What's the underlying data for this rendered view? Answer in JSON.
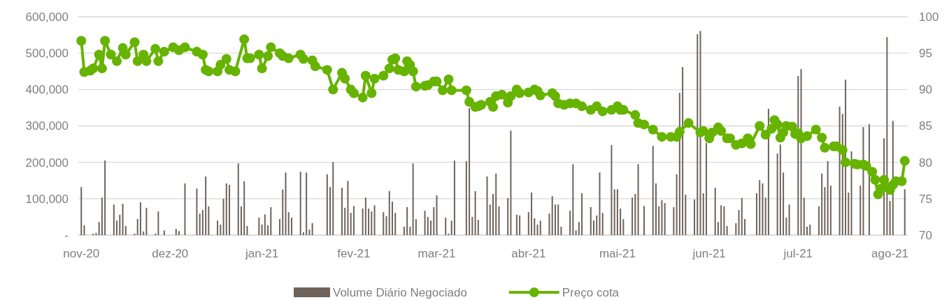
{
  "chart_data": {
    "type": "bar",
    "xlim": [
      "2020-10-31",
      "2021-08-07"
    ],
    "xticks": [
      {
        "value": "2020-11-01",
        "label": "nov-20"
      },
      {
        "value": "2020-12-01",
        "label": "dez-20"
      },
      {
        "value": "2021-01-01",
        "label": "jan-21"
      },
      {
        "value": "2021-02-01",
        "label": "fev-21"
      },
      {
        "value": "2021-03-01",
        "label": "mar-21"
      },
      {
        "value": "2021-04-01",
        "label": "abr-21"
      },
      {
        "value": "2021-05-01",
        "label": "mai-21"
      },
      {
        "value": "2021-06-01",
        "label": "jun-21"
      },
      {
        "value": "2021-07-01",
        "label": "jul-21"
      },
      {
        "value": "2021-08-01",
        "label": "ago-21"
      }
    ],
    "ylim": [
      0,
      600000
    ],
    "yticks": [
      {
        "value": 0,
        "label": "-"
      },
      {
        "value": 100000,
        "label": "100,000"
      },
      {
        "value": 200000,
        "label": "200,000"
      },
      {
        "value": 300000,
        "label": "300,000"
      },
      {
        "value": 400000,
        "label": "400,000"
      },
      {
        "value": 500000,
        "label": "500,000"
      },
      {
        "value": 600000,
        "label": "600,000"
      }
    ],
    "y2lim": [
      70,
      100
    ],
    "y2ticks": [
      70,
      75,
      80,
      85,
      90,
      95,
      100
    ],
    "grid": "y",
    "legend": "bottom",
    "series": [
      {
        "name": "Volume Diário Negociado",
        "color": "#6f635a",
        "x": [
          "2020-11-01",
          "2020-11-02",
          "2020-11-05",
          "2020-11-06",
          "2020-11-07",
          "2020-11-08",
          "2020-11-09",
          "2020-11-12",
          "2020-11-13",
          "2020-11-14",
          "2020-11-15",
          "2020-11-16",
          "2020-11-19",
          "2020-11-20",
          "2020-11-21",
          "2020-11-22",
          "2020-11-23",
          "2020-11-26",
          "2020-11-27",
          "2020-11-29",
          "2020-12-03",
          "2020-12-04",
          "2020-12-06",
          "2020-12-10",
          "2020-12-11",
          "2020-12-12",
          "2020-12-13",
          "2020-12-14",
          "2020-12-17",
          "2020-12-18",
          "2020-12-19",
          "2020-12-20",
          "2020-12-21",
          "2020-12-24",
          "2020-12-25",
          "2020-12-26",
          "2020-12-27",
          "2020-12-31",
          "2021-01-01",
          "2021-01-02",
          "2021-01-03",
          "2021-01-04",
          "2021-01-07",
          "2021-01-08",
          "2021-01-09",
          "2021-01-10",
          "2021-01-11",
          "2021-01-14",
          "2021-01-15",
          "2021-01-16",
          "2021-01-17",
          "2021-01-18",
          "2021-01-23",
          "2021-01-24",
          "2021-01-25",
          "2021-01-28",
          "2021-01-29",
          "2021-01-30",
          "2021-01-31",
          "2021-02-01",
          "2021-02-04",
          "2021-02-05",
          "2021-02-06",
          "2021-02-07",
          "2021-02-08",
          "2021-02-11",
          "2021-02-12",
          "2021-02-13",
          "2021-02-14",
          "2021-02-15",
          "2021-02-18",
          "2021-02-19",
          "2021-02-20",
          "2021-02-21",
          "2021-02-22",
          "2021-02-25",
          "2021-02-26",
          "2021-02-27",
          "2021-02-28",
          "2021-03-01",
          "2021-03-04",
          "2021-03-05",
          "2021-03-06",
          "2021-03-07",
          "2021-03-11",
          "2021-03-12",
          "2021-03-13",
          "2021-03-14",
          "2021-03-15",
          "2021-03-18",
          "2021-03-19",
          "2021-03-20",
          "2021-03-21",
          "2021-03-22",
          "2021-03-25",
          "2021-03-26",
          "2021-03-28",
          "2021-03-29",
          "2021-04-01",
          "2021-04-02",
          "2021-04-03",
          "2021-04-04",
          "2021-04-05",
          "2021-04-08",
          "2021-04-09",
          "2021-04-10",
          "2021-04-11",
          "2021-04-12",
          "2021-04-15",
          "2021-04-16",
          "2021-04-17",
          "2021-04-18",
          "2021-04-19",
          "2021-04-22",
          "2021-04-23",
          "2021-04-24",
          "2021-04-25",
          "2021-04-26",
          "2021-04-29",
          "2021-04-30",
          "2021-05-01",
          "2021-05-02",
          "2021-05-03",
          "2021-05-06",
          "2021-05-07",
          "2021-05-08",
          "2021-05-10",
          "2021-05-13",
          "2021-05-14",
          "2021-05-15",
          "2021-05-16",
          "2021-05-17",
          "2021-05-20",
          "2021-05-21",
          "2021-05-22",
          "2021-05-23",
          "2021-05-24",
          "2021-05-27",
          "2021-05-28",
          "2021-05-29",
          "2021-05-30",
          "2021-05-31",
          "2021-06-03",
          "2021-06-04",
          "2021-06-05",
          "2021-06-06",
          "2021-06-07",
          "2021-06-10",
          "2021-06-11",
          "2021-06-12",
          "2021-06-13",
          "2021-06-17",
          "2021-06-18",
          "2021-06-19",
          "2021-06-20",
          "2021-06-21",
          "2021-06-24",
          "2021-06-25",
          "2021-06-26",
          "2021-06-27",
          "2021-06-28",
          "2021-07-01",
          "2021-07-02",
          "2021-07-03",
          "2021-07-04",
          "2021-07-05",
          "2021-07-08",
          "2021-07-09",
          "2021-07-10",
          "2021-07-11",
          "2021-07-12",
          "2021-07-15",
          "2021-07-16",
          "2021-07-17",
          "2021-07-18",
          "2021-07-19",
          "2021-07-22",
          "2021-07-23",
          "2021-07-25",
          "2021-07-30",
          "2021-07-31",
          "2021-08-01",
          "2021-08-02",
          "2021-08-06"
        ],
        "values": [
          132000,
          27000,
          4000,
          6000,
          36000,
          103000,
          205000,
          84000,
          40000,
          56000,
          86000,
          25000,
          4000,
          44000,
          90000,
          10000,
          75000,
          4000,
          65000,
          13000,
          17000,
          11000,
          142000,
          128000,
          59000,
          69000,
          161000,
          79000,
          40000,
          29000,
          100000,
          142000,
          138000,
          197000,
          79000,
          148000,
          25000,
          48000,
          29000,
          57000,
          27000,
          77000,
          44000,
          125000,
          172000,
          63000,
          48000,
          174000,
          8000,
          172000,
          15000,
          33000,
          167000,
          132000,
          201000,
          130000,
          75000,
          149000,
          61000,
          80000,
          73000,
          103000,
          73000,
          65000,
          82000,
          63000,
          52000,
          121000,
          92000,
          61000,
          23000,
          77000,
          23000,
          197000,
          44000,
          67000,
          50000,
          40000,
          77000,
          109000,
          48000,
          4000,
          40000,
          205000,
          203000,
          349000,
          50000,
          121000,
          42000,
          161000,
          84000,
          113000,
          169000,
          79000,
          102000,
          287000,
          56000,
          54000,
          63000,
          117000,
          46000,
          29000,
          40000,
          59000,
          107000,
          84000,
          84000,
          23000,
          67000,
          195000,
          13000,
          36000,
          115000,
          77000,
          40000,
          54000,
          172000,
          61000,
          247000,
          126000,
          126000,
          73000,
          44000,
          103000,
          113000,
          195000,
          80000,
          245000,
          142000,
          79000,
          96000,
          88000,
          77000,
          167000,
          391000,
          462000,
          111000,
          98000,
          552000,
          561000,
          115000,
          253000,
          130000,
          36000,
          82000,
          79000,
          25000,
          33000,
          69000,
          102000,
          44000,
          115000,
          151000,
          142000,
          103000,
          347000,
          224000,
          249000,
          172000,
          48000,
          84000,
          437000,
          456000,
          103000,
          23000,
          29000,
          79000,
          169000,
          132000,
          203000,
          136000,
          353000,
          333000,
          427000,
          117000,
          230000,
          136000,
          297000,
          305000,
          266000,
          544000,
          94000,
          314000,
          126000
        ]
      },
      {
        "type": "line",
        "name": "Preço cota",
        "color": "#66b300",
        "axis": "y2",
        "marker": "circle",
        "x": [
          "2020-11-01",
          "2020-11-02",
          "2020-11-04",
          "2020-11-05",
          "2020-11-07",
          "2020-11-08",
          "2020-11-09",
          "2020-11-11",
          "2020-11-13",
          "2020-11-15",
          "2020-11-16",
          "2020-11-19",
          "2020-11-20",
          "2020-11-22",
          "2020-11-23",
          "2020-11-26",
          "2020-11-27",
          "2020-11-29",
          "2020-12-02",
          "2020-12-04",
          "2020-12-06",
          "2020-12-10",
          "2020-12-12",
          "2020-12-13",
          "2020-12-14",
          "2020-12-17",
          "2020-12-18",
          "2020-12-20",
          "2020-12-21",
          "2020-12-23",
          "2020-12-26",
          "2020-12-27",
          "2020-12-28",
          "2020-12-31",
          "2021-01-01",
          "2021-01-03",
          "2021-01-04",
          "2021-01-07",
          "2021-01-08",
          "2021-01-10",
          "2021-01-14",
          "2021-01-15",
          "2021-01-18",
          "2021-01-19",
          "2021-01-23",
          "2021-01-25",
          "2021-01-28",
          "2021-01-29",
          "2021-01-31",
          "2021-02-01",
          "2021-02-04",
          "2021-02-05",
          "2021-02-07",
          "2021-02-08",
          "2021-02-11",
          "2021-02-13",
          "2021-02-14",
          "2021-02-15",
          "2021-02-16",
          "2021-02-18",
          "2021-02-19",
          "2021-02-20",
          "2021-02-21",
          "2021-02-22",
          "2021-02-25",
          "2021-02-26",
          "2021-02-28",
          "2021-03-01",
          "2021-03-03",
          "2021-03-05",
          "2021-03-06",
          "2021-03-11",
          "2021-03-12",
          "2021-03-14",
          "2021-03-15",
          "2021-03-16",
          "2021-03-19",
          "2021-03-20",
          "2021-03-21",
          "2021-03-23",
          "2021-03-25",
          "2021-03-26",
          "2021-03-28",
          "2021-03-29",
          "2021-04-01",
          "2021-04-03",
          "2021-04-04",
          "2021-04-05",
          "2021-04-09",
          "2021-04-10",
          "2021-04-11",
          "2021-04-13",
          "2021-04-15",
          "2021-04-17",
          "2021-04-19",
          "2021-04-22",
          "2021-04-24",
          "2021-04-26",
          "2021-04-29",
          "2021-05-01",
          "2021-05-02",
          "2021-05-03",
          "2021-05-07",
          "2021-05-08",
          "2021-05-10",
          "2021-05-13",
          "2021-05-16",
          "2021-05-19",
          "2021-05-21",
          "2021-05-22",
          "2021-05-25",
          "2021-05-29",
          "2021-05-30",
          "2021-06-01",
          "2021-06-02",
          "2021-06-04",
          "2021-06-05",
          "2021-06-07",
          "2021-06-08",
          "2021-06-10",
          "2021-06-12",
          "2021-06-14",
          "2021-06-15",
          "2021-06-18",
          "2021-06-20",
          "2021-06-22",
          "2021-06-23",
          "2021-06-24",
          "2021-06-25",
          "2021-06-26",
          "2021-06-27",
          "2021-06-29",
          "2021-06-30",
          "2021-07-01",
          "2021-07-02",
          "2021-07-04",
          "2021-07-07",
          "2021-07-09",
          "2021-07-10",
          "2021-07-13",
          "2021-07-14",
          "2021-07-16",
          "2021-07-17",
          "2021-07-20",
          "2021-07-21",
          "2021-07-23",
          "2021-07-24",
          "2021-07-26",
          "2021-07-27",
          "2021-07-28",
          "2021-07-29",
          "2021-07-30",
          "2021-07-31",
          "2021-08-01",
          "2021-08-02",
          "2021-08-03",
          "2021-08-05",
          "2021-08-06"
        ],
        "values": [
          96.7,
          92.4,
          92.6,
          92.9,
          94.8,
          92.9,
          96.7,
          94.8,
          93.9,
          95.7,
          94.8,
          96.5,
          93.9,
          94.8,
          93.9,
          95.6,
          93.9,
          95.2,
          95.8,
          95.4,
          95.8,
          95.2,
          94.8,
          92.7,
          92.5,
          92.5,
          93.4,
          94.2,
          92.7,
          92.5,
          96.9,
          94.3,
          94.3,
          94.8,
          92.9,
          94.6,
          95.8,
          95.0,
          94.6,
          94.3,
          94.8,
          94.2,
          94.0,
          93.2,
          92.7,
          90.0,
          92.3,
          91.5,
          90.0,
          89.5,
          88.9,
          91.9,
          89.5,
          91.5,
          91.9,
          92.9,
          94.1,
          94.3,
          92.7,
          92.5,
          93.9,
          93.4,
          92.5,
          90.4,
          90.5,
          90.6,
          91.1,
          91.1,
          89.9,
          91.4,
          89.9,
          89.9,
          88.3,
          87.6,
          87.7,
          87.9,
          88.3,
          87.6,
          89.1,
          89.3,
          88.2,
          89.1,
          90.0,
          89.5,
          89.6,
          90.0,
          89.8,
          89.2,
          89.5,
          89.1,
          88.1,
          87.9,
          88.1,
          88.1,
          87.7,
          87.2,
          87.7,
          87.0,
          87.2,
          87.7,
          87.2,
          87.2,
          86.5,
          85.4,
          85.2,
          84.5,
          83.5,
          83.5,
          83.5,
          84.2,
          85.4,
          84.1,
          84.3,
          83.3,
          84.1,
          84.8,
          84.3,
          83.3,
          83.3,
          82.4,
          82.6,
          83.3,
          82.5,
          85.0,
          83.8,
          84.6,
          85.8,
          85.2,
          83.4,
          84.1,
          85.0,
          84.9,
          83.9,
          84.0,
          83.3,
          83.6,
          84.5,
          83.4,
          82.0,
          82.2,
          82.2,
          81.7,
          80.0,
          79.8,
          79.7,
          79.7,
          79.5,
          78.7,
          77.6,
          75.6,
          76.4,
          77.6,
          76.6,
          76.2,
          76.9,
          77.4,
          77.4,
          80.2
        ]
      }
    ]
  }
}
